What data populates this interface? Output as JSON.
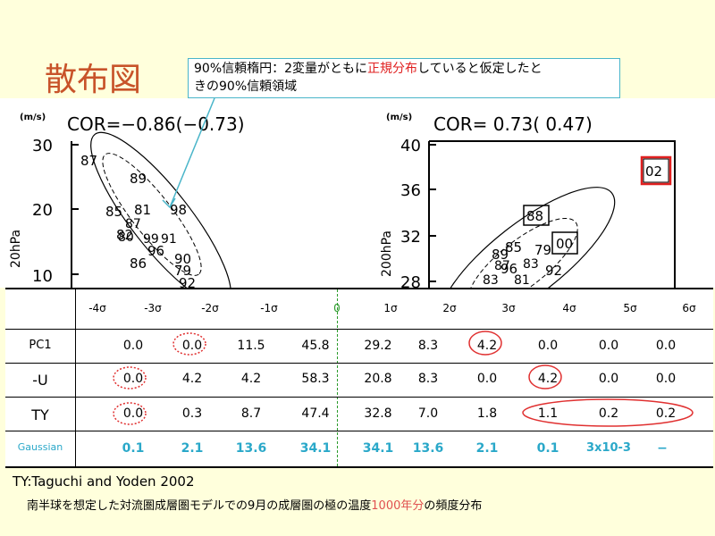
{
  "slide": {
    "title": "散布図",
    "callout": {
      "line1_a": "90%信頼楕円：2変量がともに",
      "line1_red": "正規分布",
      "line1_b": "していると仮定したと",
      "line2": "きの90%信頼領域"
    }
  },
  "chart_data": [
    {
      "type": "scatter",
      "title": "COR=−0.86(−0.73)",
      "unit": "(m/s)",
      "ylabel": "20hPa",
      "yticks": [
        "30",
        "20",
        "10"
      ],
      "ylim": [
        8,
        30
      ],
      "point_labels": [
        "87",
        "89",
        "85",
        "81",
        "98",
        "96",
        "86",
        "90",
        "79",
        "92",
        "82"
      ]
    },
    {
      "type": "scatter",
      "title": "COR= 0.73( 0.47)",
      "unit": "(m/s)",
      "ylabel": "200hPa",
      "yticks": [
        "40",
        "36",
        "32",
        "28"
      ],
      "ylim": [
        28,
        40
      ],
      "point_labels": [
        "02",
        "88",
        "00",
        "79",
        "85",
        "89",
        "96",
        "92"
      ]
    },
    {
      "type": "table",
      "columns": [
        "-4σ",
        "-3σ",
        "-2σ",
        "-1σ",
        "0",
        "1σ",
        "2σ",
        "3σ",
        "4σ",
        "5σ",
        "6σ"
      ],
      "rows": [
        {
          "label": "PC1",
          "values": [
            "0.0",
            "0.0",
            "11.5",
            "45.8",
            "29.2",
            "8.3",
            "4.2",
            "0.0",
            "0.0",
            "0.0"
          ]
        },
        {
          "label": "-U",
          "values": [
            "0.0",
            "4.2",
            "4.2",
            "58.3",
            "20.8",
            "8.3",
            "0.0",
            "4.2",
            "0.0",
            "0.0"
          ]
        },
        {
          "label": "TY",
          "values": [
            "0.0",
            "0.3",
            "8.7",
            "47.4",
            "32.8",
            "7.0",
            "1.8",
            "1.1",
            "0.2",
            "0.2"
          ]
        },
        {
          "label": "Gaussian",
          "values": [
            "0.1",
            "2.1",
            "13.6",
            "34.1",
            "34.1",
            "13.6",
            "2.1",
            "0.1",
            "3x10-3",
            "−"
          ]
        }
      ]
    }
  ],
  "footer": {
    "ref": "TY:Taguchi and Yoden 2002",
    "desc_a": "南半球を想定した対流圏成層圏モデルでの9月の成層圏の極の温度",
    "desc_red": "1000年分",
    "desc_b": "の頻度分布"
  },
  "colors": {
    "gaussian": "#2aa8c9",
    "annotation": "#e03030",
    "zero": "#2a9a2a",
    "title": "#c8532a"
  }
}
